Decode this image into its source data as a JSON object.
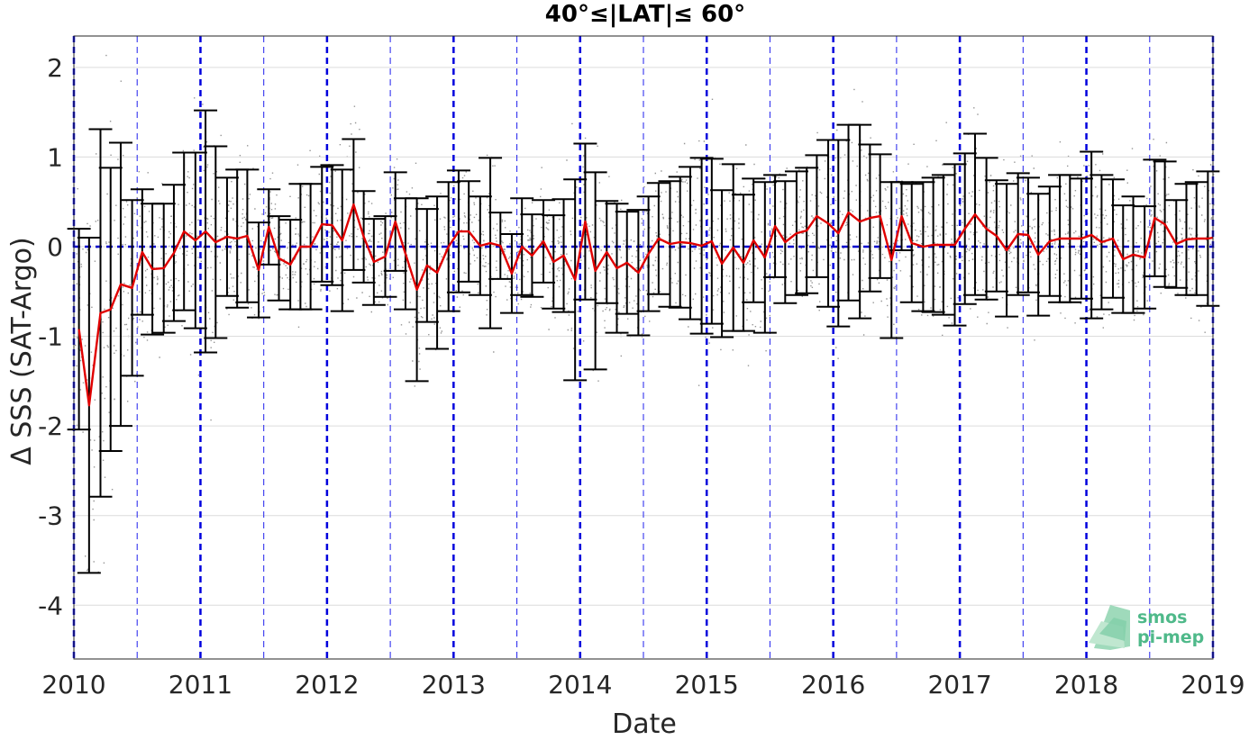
{
  "chart_data": {
    "type": "line",
    "title": "40°≤|LAT|≤ 60°",
    "xlabel": "Date",
    "ylabel": "Δ SSS (SAT-Argo)",
    "xlim": [
      2010.0,
      2019.0
    ],
    "ylim": [
      -4.6,
      2.35
    ],
    "x_ticks": [
      "2010",
      "2011",
      "2012",
      "2013",
      "2014",
      "2015",
      "2016",
      "2017",
      "2018",
      "2019"
    ],
    "y_ticks": [
      "2",
      "1",
      "0",
      "-1",
      "-2",
      "-3",
      "-4"
    ],
    "grid": "horizontal",
    "reference_line": {
      "y": 0,
      "color": "#0000cc",
      "style": "dashed"
    },
    "year_lines": {
      "color": "#0000dd",
      "style": "dashed"
    },
    "half_year_lines": {
      "color": "#3333ee",
      "style": "dashed"
    },
    "series": [
      {
        "color": "#e00000",
        "style": "line",
        "x": [
          2010.04,
          2010.12,
          2010.21,
          2010.29,
          2010.37,
          2010.46,
          2010.54,
          2010.62,
          2010.71,
          2010.79,
          2010.87,
          2010.96,
          2011.04,
          2011.12,
          2011.21,
          2011.29,
          2011.37,
          2011.46,
          2011.54,
          2011.62,
          2011.71,
          2011.79,
          2011.87,
          2011.96,
          2012.04,
          2012.12,
          2012.21,
          2012.29,
          2012.37,
          2012.46,
          2012.54,
          2012.62,
          2012.71,
          2012.79,
          2012.87,
          2012.96,
          2013.04,
          2013.12,
          2013.21,
          2013.29,
          2013.37,
          2013.46,
          2013.54,
          2013.62,
          2013.71,
          2013.79,
          2013.87,
          2013.96,
          2014.04,
          2014.12,
          2014.21,
          2014.29,
          2014.37,
          2014.46,
          2014.54,
          2014.62,
          2014.71,
          2014.79,
          2014.87,
          2014.96,
          2015.04,
          2015.12,
          2015.21,
          2015.29,
          2015.37,
          2015.46,
          2015.54,
          2015.62,
          2015.71,
          2015.79,
          2015.87,
          2015.96,
          2016.04,
          2016.12,
          2016.21,
          2016.29,
          2016.37,
          2016.46,
          2016.54,
          2016.62,
          2016.71,
          2016.79,
          2016.87,
          2016.96,
          2017.04,
          2017.12,
          2017.21,
          2017.29,
          2017.37,
          2017.46,
          2017.54,
          2017.62,
          2017.71,
          2017.79,
          2017.87,
          2017.96,
          2018.04,
          2018.12,
          2018.21,
          2018.29,
          2018.37,
          2018.46,
          2018.54,
          2018.62,
          2018.71,
          2018.79,
          2018.87,
          2018.96,
          2019.0
        ],
        "y": [
          -0.92,
          -1.77,
          -0.74,
          -0.7,
          -0.42,
          -0.46,
          -0.06,
          -0.25,
          -0.24,
          -0.07,
          0.17,
          0.07,
          0.17,
          0.05,
          0.11,
          0.09,
          0.12,
          -0.26,
          0.22,
          -0.13,
          -0.2,
          0.0,
          0.0,
          0.25,
          0.24,
          0.07,
          0.47,
          0.11,
          -0.17,
          -0.11,
          0.28,
          -0.08,
          -0.48,
          -0.21,
          -0.29,
          0.0,
          0.17,
          0.17,
          0.01,
          0.04,
          0.01,
          -0.3,
          0.0,
          -0.1,
          0.06,
          -0.17,
          -0.1,
          -0.37,
          0.28,
          -0.27,
          -0.06,
          -0.24,
          -0.18,
          -0.29,
          -0.08,
          0.09,
          0.03,
          0.05,
          0.04,
          0.01,
          0.06,
          -0.19,
          -0.01,
          -0.18,
          0.07,
          -0.12,
          0.23,
          0.05,
          0.15,
          0.18,
          0.34,
          0.26,
          0.15,
          0.38,
          0.28,
          0.32,
          0.34,
          -0.15,
          0.34,
          0.04,
          0.0,
          0.02,
          0.02,
          0.02,
          0.2,
          0.36,
          0.2,
          0.12,
          -0.04,
          0.14,
          0.13,
          -0.09,
          0.06,
          0.09,
          0.09,
          0.09,
          0.13,
          0.05,
          0.09,
          -0.14,
          -0.09,
          -0.12,
          0.32,
          0.25,
          0.03,
          0.08,
          0.09,
          0.09,
          0.1
        ]
      },
      {
        "color": "#000000",
        "style": "errorbar",
        "x": [
          2010.04,
          2010.12,
          2010.21,
          2010.29,
          2010.37,
          2010.46,
          2010.54,
          2010.62,
          2010.71,
          2010.79,
          2010.87,
          2010.96,
          2011.04,
          2011.12,
          2011.21,
          2011.29,
          2011.37,
          2011.46,
          2011.54,
          2011.62,
          2011.71,
          2011.79,
          2011.87,
          2011.96,
          2012.04,
          2012.12,
          2012.21,
          2012.29,
          2012.37,
          2012.46,
          2012.54,
          2012.62,
          2012.71,
          2012.79,
          2012.87,
          2012.96,
          2013.04,
          2013.12,
          2013.21,
          2013.29,
          2013.37,
          2013.46,
          2013.54,
          2013.62,
          2013.71,
          2013.79,
          2013.87,
          2013.96,
          2014.04,
          2014.12,
          2014.21,
          2014.29,
          2014.37,
          2014.46,
          2014.54,
          2014.62,
          2014.71,
          2014.79,
          2014.87,
          2014.96,
          2015.04,
          2015.12,
          2015.21,
          2015.29,
          2015.37,
          2015.46,
          2015.54,
          2015.62,
          2015.71,
          2015.79,
          2015.87,
          2015.96,
          2016.04,
          2016.12,
          2016.21,
          2016.29,
          2016.37,
          2016.46,
          2016.54,
          2016.62,
          2016.71,
          2016.79,
          2016.87,
          2016.96,
          2017.04,
          2017.12,
          2017.21,
          2017.29,
          2017.37,
          2017.46,
          2017.54,
          2017.62,
          2017.71,
          2017.79,
          2017.87,
          2017.96,
          2018.04,
          2018.12,
          2018.21,
          2018.29,
          2018.37,
          2018.46,
          2018.54,
          2018.62,
          2018.71,
          2018.79,
          2018.87,
          2018.96
        ],
        "y": [
          -0.92,
          -1.77,
          -0.74,
          -0.7,
          -0.42,
          -0.46,
          -0.06,
          -0.25,
          -0.24,
          -0.07,
          0.17,
          0.07,
          0.17,
          0.05,
          0.11,
          0.09,
          0.12,
          -0.26,
          0.22,
          -0.13,
          -0.2,
          0.0,
          0.0,
          0.25,
          0.24,
          0.07,
          0.47,
          0.11,
          -0.17,
          -0.11,
          0.28,
          -0.08,
          -0.48,
          -0.21,
          -0.29,
          0.0,
          0.17,
          0.17,
          0.01,
          0.04,
          0.01,
          -0.3,
          0.0,
          -0.1,
          0.06,
          -0.17,
          -0.1,
          -0.37,
          0.28,
          -0.27,
          -0.06,
          -0.24,
          -0.18,
          -0.29,
          -0.08,
          0.09,
          0.03,
          0.05,
          0.04,
          0.01,
          0.06,
          -0.19,
          -0.01,
          -0.18,
          0.07,
          -0.12,
          0.23,
          0.05,
          0.15,
          0.18,
          0.34,
          0.26,
          0.15,
          0.38,
          0.28,
          0.32,
          0.34,
          -0.15,
          0.34,
          0.04,
          0.0,
          0.02,
          0.02,
          0.02,
          0.2,
          0.36,
          0.2,
          0.12,
          -0.04,
          0.14,
          0.13,
          -0.09,
          0.06,
          0.09,
          0.09,
          0.09,
          0.13,
          0.05,
          0.09,
          -0.14,
          -0.09,
          -0.12,
          0.32,
          0.25,
          0.03,
          0.08,
          0.09,
          0.09
        ],
        "err": [
          1.12,
          1.87,
          2.05,
          1.58,
          1.58,
          0.98,
          0.7,
          0.73,
          0.72,
          0.76,
          0.88,
          0.98,
          1.35,
          1.07,
          0.66,
          0.77,
          0.74,
          0.53,
          0.42,
          0.47,
          0.5,
          0.7,
          0.7,
          0.64,
          0.67,
          0.79,
          0.73,
          0.51,
          0.48,
          0.45,
          0.55,
          0.62,
          1.02,
          0.63,
          0.85,
          0.72,
          0.68,
          0.56,
          0.55,
          0.95,
          0.37,
          0.44,
          0.54,
          0.46,
          0.46,
          0.52,
          0.63,
          1.12,
          0.87,
          1.1,
          0.57,
          0.72,
          0.57,
          0.7,
          0.64,
          0.62,
          0.7,
          0.73,
          0.85,
          0.98,
          0.92,
          0.82,
          0.93,
          0.76,
          0.69,
          0.84,
          0.57,
          0.68,
          0.69,
          0.7,
          0.68,
          0.93,
          1.04,
          0.98,
          1.08,
          0.82,
          0.69,
          0.87,
          0.38,
          0.66,
          0.72,
          0.75,
          0.78,
          0.9,
          0.84,
          0.9,
          0.79,
          0.62,
          0.74,
          0.68,
          0.64,
          0.68,
          0.61,
          0.71,
          0.71,
          0.67,
          0.93,
          0.75,
          0.66,
          0.6,
          0.65,
          0.57,
          0.65,
          0.7,
          0.49,
          0.62,
          0.63,
          0.75
        ]
      }
    ],
    "scatter_background": {
      "color": "#666666",
      "description_visible": false
    },
    "logo": {
      "line1": "smos",
      "line2": "pi-mep"
    }
  }
}
